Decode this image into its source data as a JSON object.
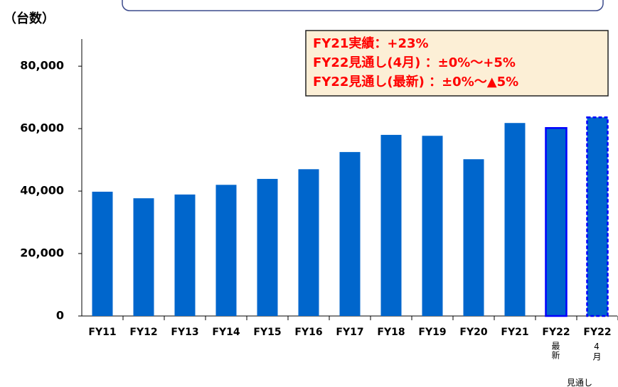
{
  "chart_data": {
    "type": "bar",
    "y_label": "（台数）",
    "categories": [
      "FY11",
      "FY12",
      "FY13",
      "FY14",
      "FY15",
      "FY16",
      "FY17",
      "FY18",
      "FY19",
      "FY20",
      "FY21",
      "FY22",
      "FY22"
    ],
    "sublabels": [
      null,
      null,
      null,
      null,
      null,
      null,
      null,
      null,
      null,
      null,
      null,
      "最新",
      "4月"
    ],
    "group_label": "見通し",
    "values": [
      39800,
      37700,
      38900,
      42000,
      43900,
      47000,
      52500,
      58000,
      57700,
      50200,
      61800,
      60200,
      63600
    ],
    "color": "#0066cc",
    "outline_color": "#0000ff",
    "outlines": [
      null,
      null,
      null,
      null,
      null,
      null,
      null,
      null,
      null,
      null,
      null,
      "solid",
      "dashed"
    ],
    "ylim": [
      0,
      88000
    ],
    "yticks": [
      0,
      {
        "value": 20000,
        "label": "20,000"
      },
      {
        "value": 40000,
        "label": "40,000"
      },
      {
        "value": 60000,
        "label": "60,000"
      },
      {
        "value": 80000,
        "label": "80,000"
      }
    ],
    "annotations": [
      "FY21実績：+23%",
      "FY22見通し(4月) ：±0%～+5%",
      "FY22見通し(最新) ：±0%～▲5%"
    ]
  }
}
